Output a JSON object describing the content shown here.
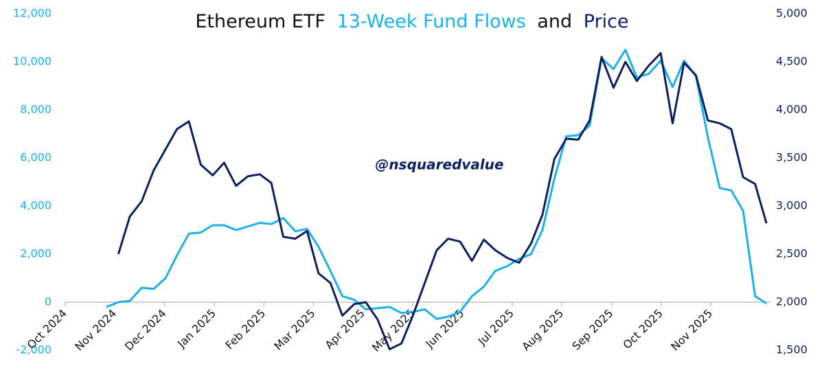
{
  "chart_data": {
    "type": "line",
    "title_parts": [
      "Ethereum ETF",
      "13-Week Fund Flows",
      "and",
      "Price"
    ],
    "title_colors": [
      "#111111",
      "#1ab0e8",
      "#111111",
      "#0b1f5e"
    ],
    "annotation": "@nsquaredvalue",
    "x": [
      0.83,
      1.07,
      1.3,
      1.54,
      1.78,
      2.02,
      2.25,
      2.49,
      2.73,
      2.97,
      3.2,
      3.44,
      3.68,
      3.92,
      4.15,
      4.39,
      4.63,
      4.87,
      5.1,
      5.34,
      5.58,
      5.82,
      6.05,
      6.29,
      6.53,
      6.77,
      7.0,
      7.24,
      7.48,
      7.71,
      7.95,
      8.19,
      8.43,
      8.66,
      8.9,
      9.14,
      9.38,
      9.61,
      9.85,
      10.09,
      10.33,
      10.56,
      10.8,
      11.04,
      11.28,
      11.51,
      11.75,
      11.99,
      12.23,
      12.46,
      12.7,
      12.94,
      13.18,
      13.41,
      13.65,
      13.89,
      14.12
    ],
    "xlim": [
      0,
      14.2
    ],
    "xticks": [
      {
        "value": 0,
        "label": "Oct 2024"
      },
      {
        "value": 1,
        "label": "Nov 2024"
      },
      {
        "value": 2,
        "label": "Dec 2024"
      },
      {
        "value": 3,
        "label": "Jan 2025"
      },
      {
        "value": 4,
        "label": "Feb 2025"
      },
      {
        "value": 5,
        "label": "Mar 2025"
      },
      {
        "value": 6,
        "label": "Apr 2025"
      },
      {
        "value": 7,
        "label": "May 2025"
      },
      {
        "value": 8,
        "label": "Jun 2025"
      },
      {
        "value": 9,
        "label": "Jul 2025"
      },
      {
        "value": 10,
        "label": "Aug 2025"
      },
      {
        "value": 11,
        "label": "Sep 2025"
      },
      {
        "value": 12,
        "label": "Oct 2025"
      },
      {
        "value": 13,
        "label": "Nov 2025"
      }
    ],
    "ylim": [
      -2000,
      12000
    ],
    "yticks": [
      {
        "value": -2000,
        "label": "-2,000"
      },
      0,
      {
        "value": 2000,
        "label": "2,000"
      },
      {
        "value": 4000,
        "label": "4,000"
      },
      {
        "value": 6000,
        "label": "6,000"
      },
      {
        "value": 8000,
        "label": "8,000"
      },
      {
        "value": 10000,
        "label": "10,000"
      },
      {
        "value": 12000,
        "label": "12,000"
      }
    ],
    "y2lim": [
      1500,
      5000
    ],
    "y2ticks": [
      {
        "value": 1500,
        "label": "1,500"
      },
      {
        "value": 2000,
        "label": "2,000"
      },
      {
        "value": 2500,
        "label": "2,500"
      },
      {
        "value": 3000,
        "label": "3,000"
      },
      {
        "value": 3500,
        "label": "3,500"
      },
      {
        "value": 4000,
        "label": "4,000"
      },
      {
        "value": 4500,
        "label": "4,500"
      },
      {
        "value": 5000,
        "label": "5,000"
      }
    ],
    "grid": false,
    "series": [
      {
        "name": "13-Week Fund Flows",
        "color": "#1ab0e8",
        "axis": "y",
        "values": [
          -200,
          0,
          50,
          600,
          550,
          1000,
          1950,
          2850,
          2900,
          3200,
          3200,
          3000,
          3150,
          3300,
          3250,
          3500,
          2950,
          3050,
          2300,
          1300,
          250,
          100,
          -300,
          -250,
          -200,
          -450,
          -400,
          -300,
          -700,
          -600,
          -400,
          250,
          650,
          1300,
          1500,
          1800,
          2000,
          3000,
          5150,
          6900,
          6950,
          7350,
          10150,
          9700,
          10500,
          9350,
          9500,
          10050,
          8950,
          10050,
          9400,
          6850,
          4750,
          4650,
          3800,
          250,
          -50
        ]
      },
      {
        "name": "Price",
        "color": "#0b1f5e",
        "axis": "y2",
        "values": [
          null,
          2500,
          2890,
          3050,
          3370,
          3590,
          3800,
          3880,
          3430,
          3320,
          3450,
          3210,
          3310,
          3330,
          3240,
          2680,
          2660,
          2740,
          2300,
          2200,
          1860,
          1980,
          2000,
          1820,
          1510,
          1570,
          1860,
          2200,
          2540,
          2660,
          2630,
          2430,
          2650,
          2540,
          2460,
          2410,
          2610,
          2910,
          3490,
          3700,
          3690,
          3890,
          4550,
          4230,
          4500,
          4300,
          4460,
          4590,
          3860,
          4490,
          4360,
          3890,
          3860,
          3800,
          3300,
          3230,
          2820
        ]
      }
    ]
  }
}
